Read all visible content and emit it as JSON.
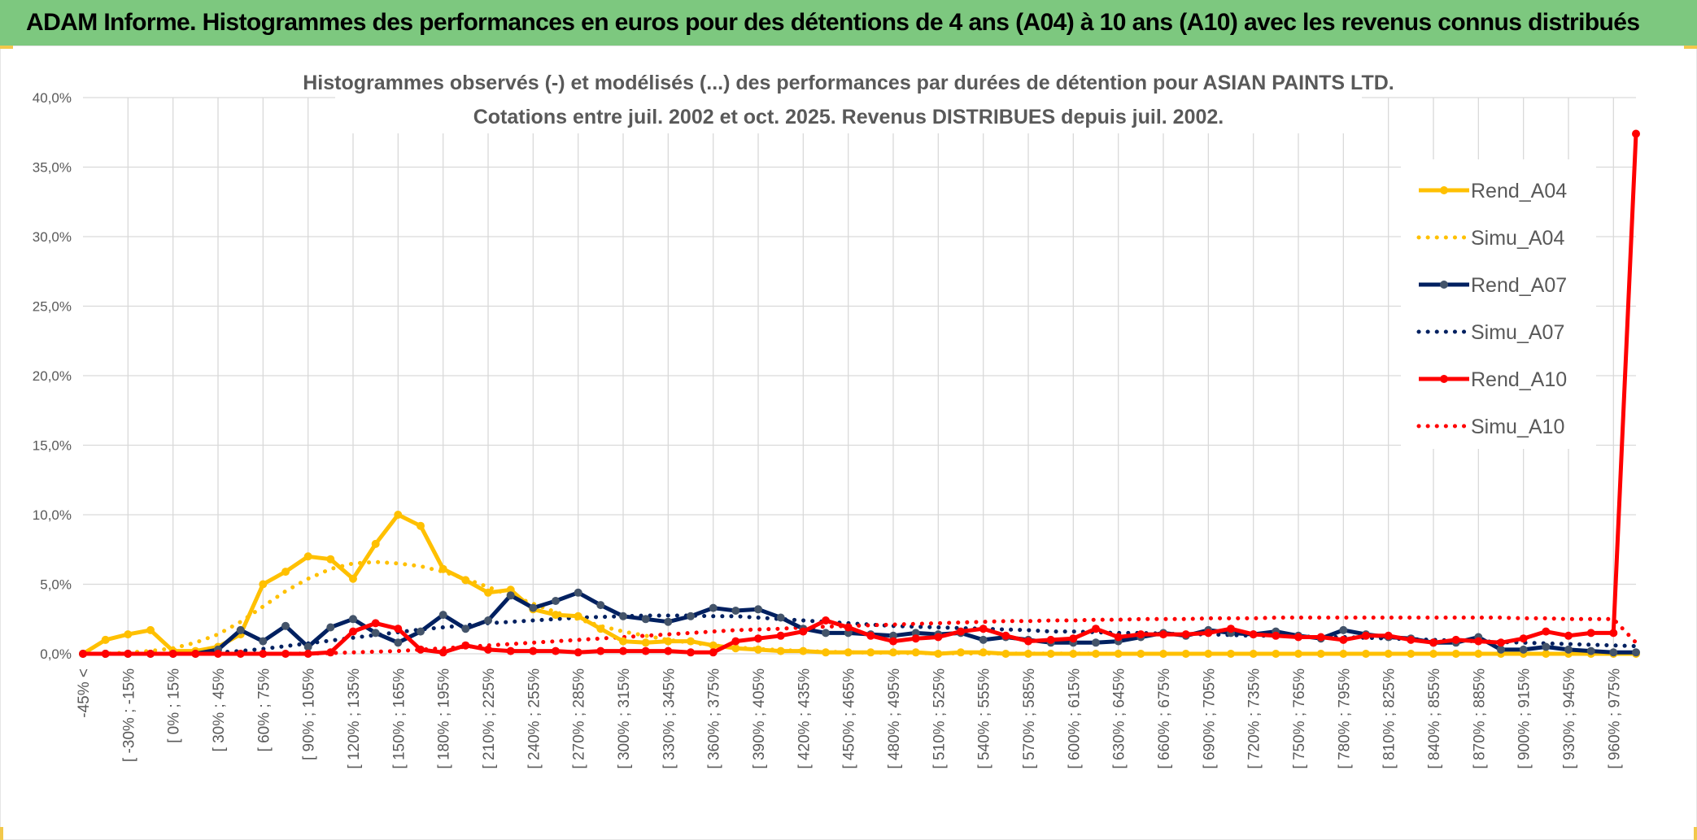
{
  "banner": {
    "title": "ADAM Informe. Histogrammes des performances en euros pour des détentions de 4 ans (A04) à 10 ans (A10) avec les revenus connus distribués"
  },
  "chart_data": {
    "type": "line",
    "title": "Histogrammes observés (-) et modélisés (...) des performances par durées de détention pour ASIAN PAINTS LTD.",
    "subtitle": "Cotations entre juil. 2002 et oct. 2025. Revenus DISTRIBUES depuis juil. 2002.",
    "xlabel": "",
    "ylabel": "",
    "ylim": [
      0,
      40
    ],
    "y_ticks": [
      "0,0%",
      "5,0%",
      "10,0%",
      "15,0%",
      "20,0%",
      "25,0%",
      "30,0%",
      "35,0%",
      "40,0%"
    ],
    "grid": true,
    "legend_position": "right",
    "x_tick_labels": [
      "-45% <",
      "[ -30% ; -15%",
      "[ 0% ; 15%",
      "[ 30% ; 45%",
      "[ 60% ; 75%",
      "[ 90% ; 105%",
      "[ 120% ; 135%",
      "[ 150% ; 165%",
      "[ 180% ; 195%",
      "[ 210% ; 225%",
      "[ 240% ; 255%",
      "[ 270% ; 285%",
      "[ 300% ; 315%",
      "[ 330% ; 345%",
      "[ 360% ; 375%",
      "[ 390% ; 405%",
      "[ 420% ; 435%",
      "[ 450% ; 465%",
      "[ 480% ; 495%",
      "[ 510% ; 525%",
      "[ 540% ; 555%",
      "[ 570% ; 585%",
      "[ 600% ; 615%",
      "[ 630% ; 645%",
      "[ 660% ; 675%",
      "[ 690% ; 705%",
      "[ 720% ; 735%",
      "[ 750% ; 765%",
      "[ 780% ; 795%",
      "[ 810% ; 825%",
      "[ 840% ; 855%",
      "[ 870% ; 885%",
      "[ 900% ; 915%",
      "[ 930% ; 945%",
      "[ 960% ; 975%"
    ],
    "categories_count": 70,
    "series": [
      {
        "name": "Rend_A04",
        "color": "#ffc000",
        "style": "solid",
        "values": [
          0.0,
          1.0,
          1.4,
          1.7,
          0.2,
          0.2,
          0.5,
          1.4,
          5.0,
          5.9,
          7.0,
          6.8,
          5.4,
          7.9,
          10.0,
          9.2,
          6.1,
          5.3,
          4.4,
          4.6,
          3.2,
          2.8,
          2.7,
          1.8,
          0.9,
          0.8,
          0.9,
          0.9,
          0.6,
          0.4,
          0.3,
          0.2,
          0.2,
          0.1,
          0.1,
          0.1,
          0.1,
          0.1,
          0.0,
          0.1,
          0.1,
          0.0,
          0.0,
          0.0,
          0.0,
          0.0,
          0.0,
          0.0,
          0.0,
          0.0,
          0.0,
          0.0,
          0.0,
          0.0,
          0.0,
          0.0,
          0.0,
          0.0,
          0.0,
          0.0,
          0.0,
          0.0,
          0.0,
          0.0,
          0.0,
          0.0,
          0.0,
          0.0,
          0.0,
          0.0
        ]
      },
      {
        "name": "Simu_A04",
        "color": "#ffc000",
        "style": "dotted",
        "values": [
          0.0,
          0.0,
          0.1,
          0.2,
          0.4,
          0.8,
          1.4,
          2.3,
          3.4,
          4.5,
          5.4,
          6.1,
          6.5,
          6.6,
          6.5,
          6.3,
          5.9,
          5.4,
          4.8,
          4.2,
          3.6,
          3.0,
          2.5,
          2.0,
          1.6,
          1.3,
          1.0,
          0.8,
          0.6,
          0.45,
          0.35,
          0.27,
          0.2,
          0.15,
          0.11,
          0.08,
          0.06,
          0.05,
          0.04,
          0.03,
          0.02,
          0.02,
          0.01,
          0.01,
          0.01,
          0.01,
          0.0,
          0.0,
          0.0,
          0.0,
          0.0,
          0.0,
          0.0,
          0.0,
          0.0,
          0.0,
          0.0,
          0.0,
          0.0,
          0.0,
          0.0,
          0.0,
          0.0,
          0.0,
          0.0,
          0.0,
          0.0,
          0.0,
          0.0,
          0.0
        ]
      },
      {
        "name": "Rend_A07",
        "color": "#002060",
        "style": "solid",
        "values": [
          0.0,
          0.0,
          0.0,
          0.0,
          0.0,
          0.0,
          0.3,
          1.7,
          0.9,
          2.0,
          0.5,
          1.9,
          2.5,
          1.5,
          0.8,
          1.6,
          2.8,
          1.8,
          2.4,
          4.2,
          3.3,
          3.8,
          4.4,
          3.5,
          2.7,
          2.5,
          2.3,
          2.7,
          3.3,
          3.1,
          3.2,
          2.6,
          1.8,
          1.5,
          1.5,
          1.4,
          1.3,
          1.5,
          1.4,
          1.5,
          1.0,
          1.2,
          1.0,
          0.8,
          0.8,
          0.8,
          0.9,
          1.2,
          1.5,
          1.3,
          1.7,
          1.5,
          1.4,
          1.6,
          1.3,
          1.1,
          1.7,
          1.4,
          1.2,
          1.1,
          0.8,
          0.8,
          1.2,
          0.3,
          0.3,
          0.5,
          0.3,
          0.2,
          0.1,
          0.1
        ]
      },
      {
        "name": "Simu_A07",
        "color": "#002060",
        "style": "dotted",
        "values": [
          0.0,
          0.0,
          0.0,
          0.0,
          0.0,
          0.05,
          0.1,
          0.2,
          0.35,
          0.55,
          0.75,
          0.95,
          1.15,
          1.35,
          1.55,
          1.75,
          1.9,
          2.05,
          2.2,
          2.3,
          2.4,
          2.5,
          2.6,
          2.65,
          2.7,
          2.75,
          2.75,
          2.75,
          2.7,
          2.7,
          2.6,
          2.5,
          2.4,
          2.3,
          2.2,
          2.1,
          2.0,
          1.95,
          1.9,
          1.85,
          1.8,
          1.75,
          1.7,
          1.6,
          1.6,
          1.55,
          1.5,
          1.5,
          1.45,
          1.4,
          1.4,
          1.35,
          1.3,
          1.3,
          1.25,
          1.2,
          1.2,
          1.15,
          1.1,
          1.05,
          1.0,
          0.95,
          0.9,
          0.85,
          0.8,
          0.75,
          0.7,
          0.65,
          0.6,
          0.55
        ]
      },
      {
        "name": "Rend_A10",
        "color": "#ff0000",
        "style": "solid",
        "values": [
          0.0,
          0.0,
          0.0,
          0.0,
          0.0,
          0.0,
          0.0,
          0.0,
          0.0,
          0.0,
          0.0,
          0.1,
          1.6,
          2.2,
          1.8,
          0.3,
          0.1,
          0.6,
          0.3,
          0.2,
          0.2,
          0.2,
          0.1,
          0.2,
          0.2,
          0.2,
          0.2,
          0.1,
          0.1,
          0.9,
          1.1,
          1.3,
          1.6,
          2.4,
          1.9,
          1.3,
          0.9,
          1.1,
          1.2,
          1.6,
          1.8,
          1.3,
          0.9,
          1.0,
          1.1,
          1.8,
          1.2,
          1.4,
          1.4,
          1.4,
          1.5,
          1.8,
          1.4,
          1.3,
          1.2,
          1.2,
          1.0,
          1.3,
          1.3,
          1.0,
          0.8,
          1.0,
          0.9,
          0.8,
          1.1,
          1.6,
          1.3,
          1.5,
          1.5,
          37.4
        ]
      },
      {
        "name": "Simu_A10",
        "color": "#ff0000",
        "style": "dotted",
        "values": [
          0.0,
          0.0,
          0.0,
          0.0,
          0.0,
          0.0,
          0.0,
          0.0,
          0.0,
          0.0,
          0.02,
          0.05,
          0.1,
          0.15,
          0.2,
          0.3,
          0.4,
          0.5,
          0.6,
          0.7,
          0.8,
          0.9,
          1.0,
          1.1,
          1.2,
          1.3,
          1.4,
          1.5,
          1.6,
          1.7,
          1.75,
          1.8,
          1.9,
          1.95,
          2.0,
          2.05,
          2.1,
          2.15,
          2.2,
          2.25,
          2.3,
          2.35,
          2.35,
          2.4,
          2.4,
          2.45,
          2.45,
          2.5,
          2.5,
          2.5,
          2.55,
          2.55,
          2.55,
          2.6,
          2.6,
          2.6,
          2.6,
          2.6,
          2.6,
          2.6,
          2.6,
          2.6,
          2.6,
          2.6,
          2.55,
          2.55,
          2.5,
          2.5,
          2.5,
          0.8
        ]
      }
    ]
  }
}
